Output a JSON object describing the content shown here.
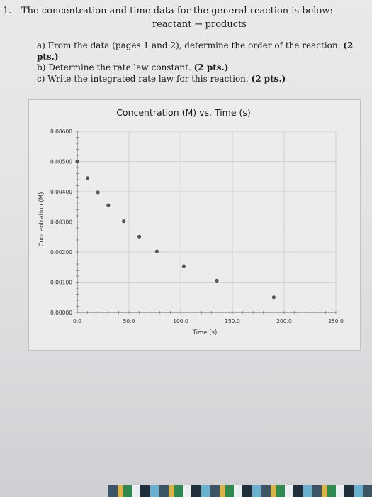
{
  "question": {
    "number": "1.",
    "intro": "The concentration and time data for the general reaction is below:",
    "reaction": "reactant → products",
    "parts": [
      {
        "letter": "a)",
        "text": "From the data (pages 1 and 2), determine the order of the reaction.",
        "points": "(2 pts.)"
      },
      {
        "letter": "b)",
        "text": "Determine the rate law constant.",
        "points": "(2 pts.)"
      },
      {
        "letter": "c)",
        "text": "Write the integrated rate law for this reaction.",
        "points": "(2 pts.)"
      }
    ]
  },
  "chart_data": {
    "type": "scatter",
    "title": "Concentration (M) vs. Time (s)",
    "xlabel": "Time (s)",
    "ylabel": "Concentration (M)",
    "xlim": [
      0,
      250
    ],
    "ylim": [
      0,
      0.006
    ],
    "xticks": [
      "0.0",
      "50.0",
      "100.0",
      "150.0",
      "200.0",
      "250.0"
    ],
    "yticks": [
      "0.00000",
      "0.00100",
      "0.00200",
      "0.00300",
      "0.00400",
      "0.00500",
      "0.00600"
    ],
    "grid": true,
    "points": [
      {
        "x": 0,
        "y": 0.005
      },
      {
        "x": 10,
        "y": 0.00445
      },
      {
        "x": 20,
        "y": 0.00398
      },
      {
        "x": 30,
        "y": 0.00355
      },
      {
        "x": 45,
        "y": 0.00302
      },
      {
        "x": 60,
        "y": 0.00251
      },
      {
        "x": 77,
        "y": 0.00202
      },
      {
        "x": 103,
        "y": 0.00153
      },
      {
        "x": 135,
        "y": 0.00105
      },
      {
        "x": 190,
        "y": 0.0005
      }
    ],
    "marker_color": "#575757"
  }
}
